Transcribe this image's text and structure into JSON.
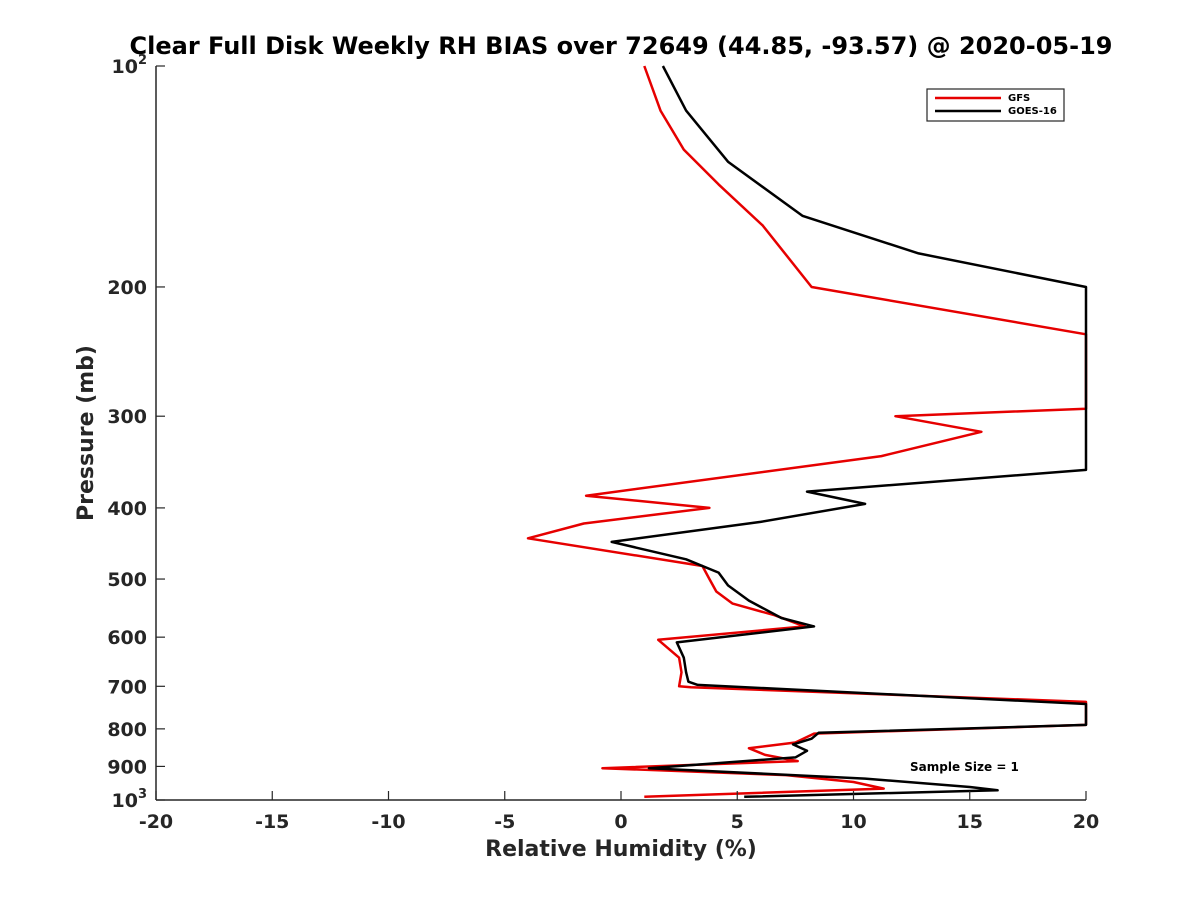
{
  "chart_data": {
    "type": "line",
    "title": "Clear Full Disk Weekly RH BIAS over 72649 (44.85, -93.57) @ 2020-05-19",
    "xlabel": "Relative Humidity (%)",
    "ylabel": "Pressure (mb)",
    "xlim": [
      -20,
      20
    ],
    "ylim": [
      100,
      1000
    ],
    "yscale": "log",
    "y_reversed": true,
    "grid": false,
    "legend_position": "top-right",
    "x_ticks": [
      -20,
      -15,
      -10,
      -5,
      0,
      5,
      10,
      15,
      20
    ],
    "y_ticks": [
      {
        "value": 100,
        "base": "10",
        "exp": "2"
      },
      {
        "value": 200,
        "label": "200"
      },
      {
        "value": 300,
        "label": "300"
      },
      {
        "value": 400,
        "label": "400"
      },
      {
        "value": 500,
        "label": "500"
      },
      {
        "value": 600,
        "label": "600"
      },
      {
        "value": 700,
        "label": "700"
      },
      {
        "value": 800,
        "label": "800"
      },
      {
        "value": 900,
        "label": "900"
      },
      {
        "value": 1000,
        "base": "10",
        "exp": "3"
      }
    ],
    "annotation": "Sample Size = 1",
    "series": [
      {
        "name": "GFS",
        "color": "#e60000",
        "points": [
          [
            1.0,
            100
          ],
          [
            1.7,
            115
          ],
          [
            2.7,
            130
          ],
          [
            4.2,
            145
          ],
          [
            6.1,
            165
          ],
          [
            8.2,
            200
          ],
          [
            20,
            232
          ],
          [
            20,
            293
          ],
          [
            11.8,
            300
          ],
          [
            15.5,
            315
          ],
          [
            11.2,
            340
          ],
          [
            -1.5,
            385
          ],
          [
            3.8,
            400
          ],
          [
            -1.6,
            420
          ],
          [
            -4.0,
            440
          ],
          [
            3.5,
            480
          ],
          [
            3.8,
            500
          ],
          [
            4.1,
            520
          ],
          [
            4.8,
            540
          ],
          [
            6.6,
            560
          ],
          [
            7.9,
            580
          ],
          [
            1.6,
            605
          ],
          [
            2.5,
            640
          ],
          [
            2.6,
            670
          ],
          [
            2.5,
            700
          ],
          [
            3.0,
            702
          ],
          [
            20,
            735
          ],
          [
            20,
            790
          ],
          [
            8.3,
            812
          ],
          [
            7.5,
            835
          ],
          [
            5.5,
            850
          ],
          [
            6.2,
            868
          ],
          [
            7.6,
            885
          ],
          [
            -0.8,
            905
          ],
          [
            7.1,
            925
          ],
          [
            10.0,
            945
          ],
          [
            11.3,
            965
          ],
          [
            1.0,
            990
          ]
        ]
      },
      {
        "name": "GOES-16",
        "color": "#000000",
        "points": [
          [
            1.8,
            100
          ],
          [
            2.8,
            115
          ],
          [
            4.6,
            135
          ],
          [
            7.8,
            160
          ],
          [
            12.8,
            180
          ],
          [
            20,
            200
          ],
          [
            20,
            355
          ],
          [
            8.0,
            380
          ],
          [
            10.5,
            395
          ],
          [
            6.0,
            418
          ],
          [
            -0.4,
            445
          ],
          [
            2.8,
            470
          ],
          [
            4.2,
            490
          ],
          [
            4.6,
            510
          ],
          [
            5.5,
            535
          ],
          [
            6.9,
            565
          ],
          [
            8.3,
            580
          ],
          [
            2.4,
            610
          ],
          [
            2.7,
            640
          ],
          [
            2.8,
            670
          ],
          [
            2.9,
            690
          ],
          [
            3.3,
            697
          ],
          [
            20,
            740
          ],
          [
            20,
            790
          ],
          [
            8.5,
            810
          ],
          [
            8.2,
            825
          ],
          [
            7.4,
            840
          ],
          [
            8.0,
            857
          ],
          [
            7.5,
            875
          ],
          [
            1.2,
            905
          ],
          [
            10.5,
            935
          ],
          [
            15.0,
            960
          ],
          [
            16.2,
            970
          ],
          [
            5.3,
            990
          ]
        ]
      }
    ]
  }
}
